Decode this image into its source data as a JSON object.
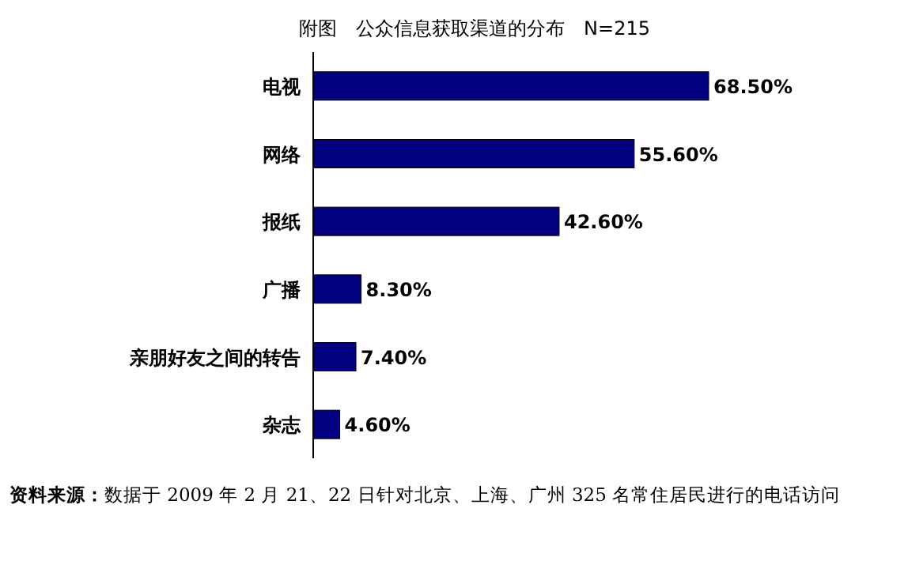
{
  "chart_data": {
    "type": "bar",
    "orientation": "horizontal",
    "title": "附图　公众信息获取渠道的分布　N=215",
    "categories": [
      "电视",
      "网络",
      "报纸",
      "广播",
      "亲朋好友之间的转告",
      "杂志"
    ],
    "values": [
      68.5,
      55.6,
      42.6,
      8.3,
      7.4,
      4.6
    ],
    "value_labels": [
      "68.50%",
      "55.60%",
      "42.60%",
      "8.30%",
      "7.40%",
      "4.60%"
    ],
    "color": "#000080",
    "annotations": [
      "**资料来源：**数据于 2009 年 2 月 21、22 日针对北京、上海、广州 325 名常住居民进行的电话访问"
    ]
  }
}
